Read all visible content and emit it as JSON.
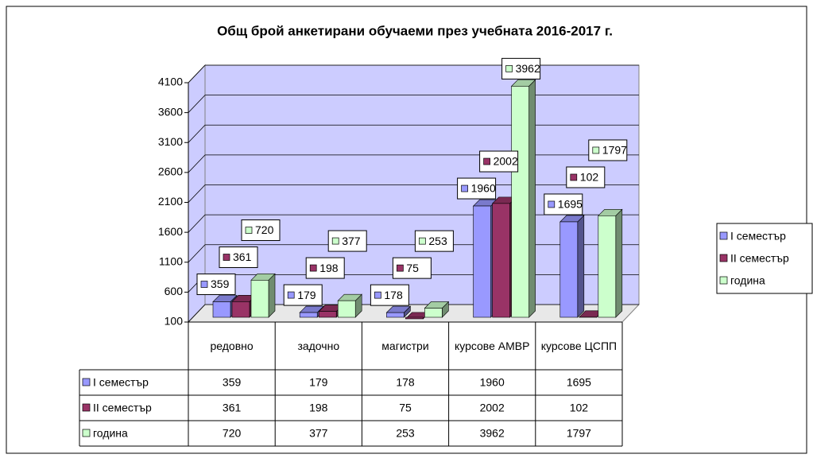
{
  "chart_data": {
    "type": "bar3d",
    "title": "Общ брой анкетирани обучаеми през учебната 2016-2017 г.",
    "categories": [
      "редовно",
      "задочно",
      "магистри",
      "курсове АМВР",
      "курсове ЦСПП"
    ],
    "series": [
      {
        "name": "I семестър",
        "color": "#9999ff",
        "values": [
          359,
          179,
          178,
          1960,
          1695
        ]
      },
      {
        "name": "II семестър",
        "color": "#993366",
        "values": [
          361,
          198,
          75,
          2002,
          102
        ]
      },
      {
        "name": "година",
        "color": "#ccffcc",
        "values": [
          720,
          377,
          253,
          3962,
          1797
        ]
      }
    ],
    "ylim": [
      100,
      4100
    ],
    "yticks": [
      100,
      600,
      1100,
      1600,
      2100,
      2600,
      3100,
      3600,
      4100
    ],
    "grid": true,
    "data_labels": true,
    "data_table": true,
    "legend": "right"
  }
}
